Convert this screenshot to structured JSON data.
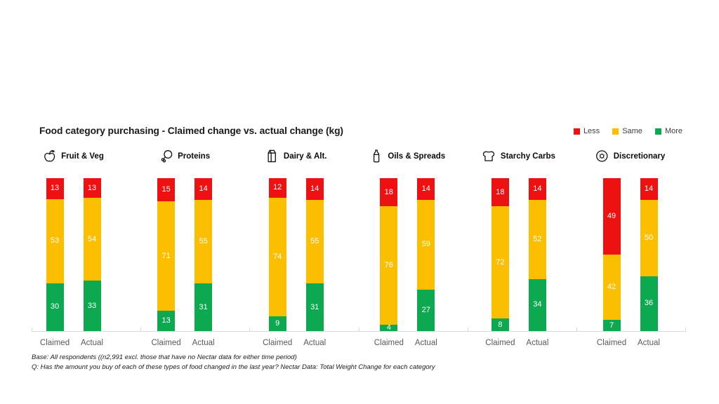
{
  "colors": {
    "less": "#EE1111",
    "same": "#FCBF00",
    "more": "#0DA950"
  },
  "bar_labels": {
    "claimed": "Claimed",
    "actual": "Actual"
  },
  "footnotes": [
    "Base: All respondents ((n2,991 excl. those that have no Nectar data for either time period)",
    "Q: Has the amount you buy of each of these types of food changed in the last year? Nectar Data: Total Weight Change for each category"
  ],
  "chart_data": {
    "type": "bar",
    "stacking": "stacked-normalized-height",
    "title": "Food category purchasing - Claimed change vs. actual change (kg)",
    "legend_position": "top-right",
    "legend": [
      {
        "key": "less",
        "label": "Less"
      },
      {
        "key": "same",
        "label": "Same"
      },
      {
        "key": "more",
        "label": "More"
      }
    ],
    "bar_columns": [
      "Claimed",
      "Actual"
    ],
    "groups": [
      {
        "category": "Fruit & Veg",
        "icon": "apple-icon",
        "claimed": {
          "less": 13,
          "same": 53,
          "more": 30
        },
        "actual": {
          "less": 13,
          "same": 54,
          "more": 33
        }
      },
      {
        "category": "Proteins",
        "icon": "drumstick-icon",
        "claimed": {
          "less": 15,
          "same": 71,
          "more": 13
        },
        "actual": {
          "less": 14,
          "same": 55,
          "more": 31
        }
      },
      {
        "category": "Dairy & Alt.",
        "icon": "milk-carton-icon",
        "claimed": {
          "less": 12,
          "same": 74,
          "more": 9
        },
        "actual": {
          "less": 14,
          "same": 55,
          "more": 31
        }
      },
      {
        "category": "Oils & Spreads",
        "icon": "oil-bottle-icon",
        "claimed": {
          "less": 18,
          "same": 76,
          "more": 4
        },
        "actual": {
          "less": 14,
          "same": 59,
          "more": 27
        }
      },
      {
        "category": "Starchy Carbs",
        "icon": "bread-icon",
        "claimed": {
          "less": 18,
          "same": 72,
          "more": 8
        },
        "actual": {
          "less": 14,
          "same": 52,
          "more": 34
        }
      },
      {
        "category": "Discretionary",
        "icon": "donut-icon",
        "claimed": {
          "less": 49,
          "same": 42,
          "more": 7
        },
        "actual": {
          "less": 14,
          "same": 50,
          "more": 36
        }
      }
    ]
  }
}
